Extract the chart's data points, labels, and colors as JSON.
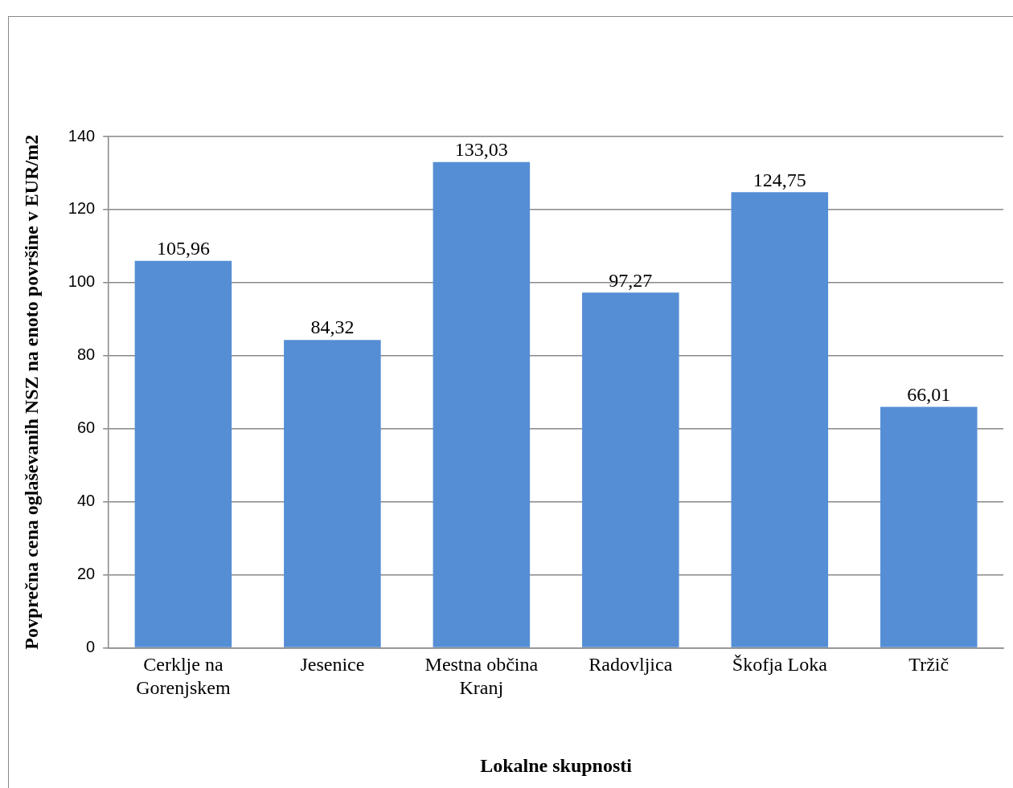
{
  "chart_data": {
    "type": "bar",
    "xlabel": "Lokalne skupnosti",
    "ylabel": "Povprečna cena oglaševanih NSZ na enoto površine v EUR/m2",
    "categories": [
      "Cerklje na Gorenjskem",
      "Jesenice",
      "Mestna občina Kranj",
      "Radovljica",
      "Škofja Loka",
      "Tržič"
    ],
    "values": [
      105.96,
      84.32,
      133.03,
      97.27,
      124.75,
      66.01
    ],
    "value_labels": [
      "105,96",
      "84,32",
      "133,03",
      "97,27",
      "124,75",
      "66,01"
    ],
    "color": "#558ed5",
    "ylim": [
      0,
      140
    ],
    "yticks": [
      0,
      20,
      40,
      60,
      80,
      100,
      120,
      140
    ],
    "grid": "y"
  }
}
